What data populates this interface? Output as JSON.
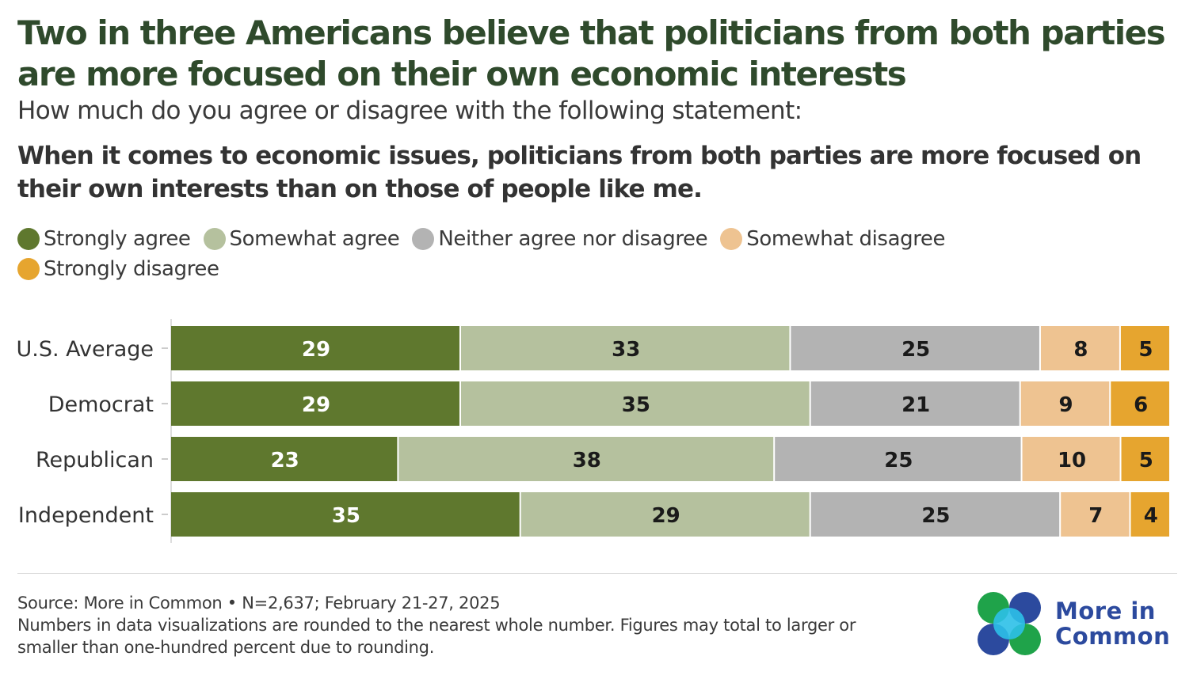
{
  "header": {
    "title": "Two in three Americans believe that politicians from both parties are more focused on their own economic interests",
    "subtitle": "How much do you agree or disagree with the following statement:",
    "statement": "When it comes to economic issues, politicians from both parties are more focused on their own interests than on those of people like me."
  },
  "legend": [
    {
      "label": "Strongly agree",
      "color": "#5f782e"
    },
    {
      "label": "Somewhat agree",
      "color": "#b5c19e"
    },
    {
      "label": "Neither agree nor disagree",
      "color": "#b3b3b3"
    },
    {
      "label": "Somewhat disagree",
      "color": "#eec391"
    },
    {
      "label": "Strongly disagree",
      "color": "#e6a52f"
    }
  ],
  "chart_data": {
    "type": "bar",
    "orientation": "horizontal",
    "stacked": true,
    "categories": [
      "U.S. Average",
      "Democrat",
      "Republican",
      "Independent"
    ],
    "series": [
      {
        "name": "Strongly agree",
        "color": "#5f782e",
        "label_color": "#ffffff",
        "values": [
          29,
          29,
          23,
          35
        ]
      },
      {
        "name": "Somewhat agree",
        "color": "#b5c19e",
        "label_color": "#1a1a1a",
        "values": [
          33,
          35,
          38,
          29
        ]
      },
      {
        "name": "Neither agree nor disagree",
        "color": "#b3b3b3",
        "label_color": "#1a1a1a",
        "values": [
          25,
          21,
          25,
          25
        ]
      },
      {
        "name": "Somewhat disagree",
        "color": "#eec391",
        "label_color": "#1a1a1a",
        "values": [
          8,
          9,
          10,
          7
        ]
      },
      {
        "name": "Strongly disagree",
        "color": "#e6a52f",
        "label_color": "#1a1a1a",
        "values": [
          5,
          6,
          5,
          4
        ]
      }
    ],
    "legend_position": "top",
    "grid": false
  },
  "footer": {
    "source": "Source: More in Common • N=2,637; February 21-27, 2025",
    "note": "Numbers in data visualizations are rounded to the nearest whole number. Figures may total to larger or smaller than one-hundred percent due to rounding."
  },
  "logo": {
    "line1": "More in",
    "line2": "Common",
    "colors": [
      "#1fa34a",
      "#2c4a9e",
      "#2cc0e8"
    ]
  }
}
